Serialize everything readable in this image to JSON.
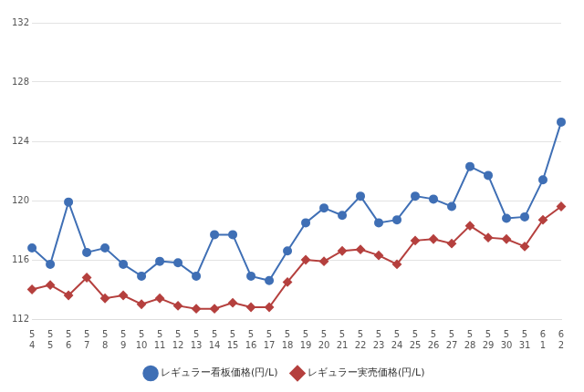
{
  "chart_data": {
    "type": "line",
    "categories": [
      [
        "5",
        "4"
      ],
      [
        "5",
        "5"
      ],
      [
        "5",
        "6"
      ],
      [
        "5",
        "7"
      ],
      [
        "5",
        "8"
      ],
      [
        "5",
        "9"
      ],
      [
        "5",
        "10"
      ],
      [
        "5",
        "11"
      ],
      [
        "5",
        "12"
      ],
      [
        "5",
        "13"
      ],
      [
        "5",
        "14"
      ],
      [
        "5",
        "15"
      ],
      [
        "5",
        "16"
      ],
      [
        "5",
        "17"
      ],
      [
        "5",
        "18"
      ],
      [
        "5",
        "19"
      ],
      [
        "5",
        "20"
      ],
      [
        "5",
        "21"
      ],
      [
        "5",
        "22"
      ],
      [
        "5",
        "23"
      ],
      [
        "5",
        "24"
      ],
      [
        "5",
        "25"
      ],
      [
        "5",
        "26"
      ],
      [
        "5",
        "27"
      ],
      [
        "5",
        "28"
      ],
      [
        "5",
        "29"
      ],
      [
        "5",
        "30"
      ],
      [
        "5",
        "31"
      ],
      [
        "6",
        "1"
      ],
      [
        "6",
        "2"
      ]
    ],
    "series": [
      {
        "name": "レギュラー看板価格(円/L)",
        "color": "#3f6fb5",
        "marker": "circle",
        "values": [
          116.8,
          115.7,
          119.9,
          116.5,
          116.8,
          115.7,
          114.9,
          115.9,
          115.8,
          114.9,
          117.7,
          117.7,
          114.9,
          114.6,
          116.6,
          118.5,
          119.5,
          119.0,
          120.3,
          118.5,
          118.7,
          120.3,
          120.1,
          119.6,
          122.3,
          121.7,
          118.8,
          118.9,
          121.4,
          125.3
        ]
      },
      {
        "name": "レギュラー実売価格(円/L)",
        "color": "#b5403e",
        "marker": "diamond",
        "values": [
          114.0,
          114.3,
          113.6,
          114.8,
          113.4,
          113.6,
          113.0,
          113.4,
          112.9,
          112.7,
          112.7,
          113.1,
          112.8,
          112.8,
          114.5,
          116.0,
          115.9,
          116.6,
          116.7,
          116.3,
          115.7,
          117.3,
          117.4,
          117.1,
          118.3,
          117.5,
          117.4,
          116.9,
          118.7,
          119.6
        ]
      }
    ],
    "ylim": [
      112,
      132
    ],
    "yticks": [
      112,
      116,
      120,
      124,
      128,
      132
    ],
    "grid": true,
    "legend": "bottom"
  }
}
